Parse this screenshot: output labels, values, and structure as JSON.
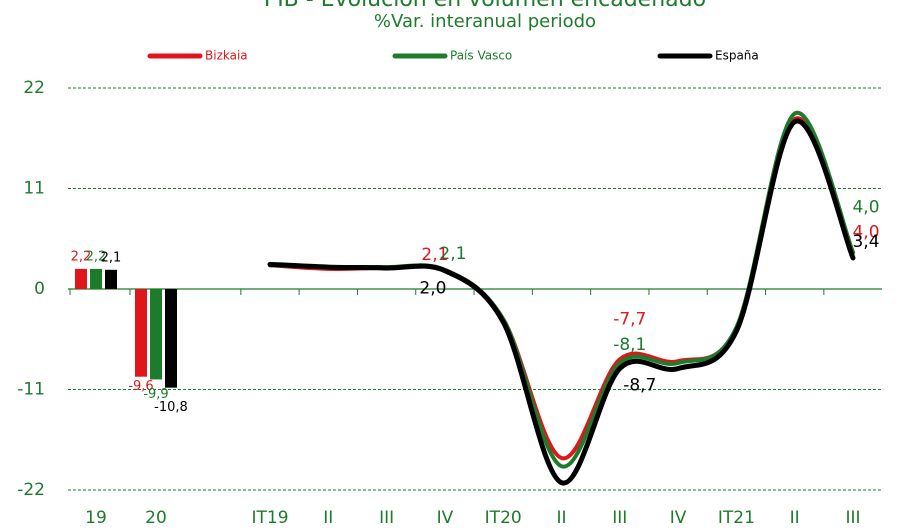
{
  "chart_data": [
    {
      "type": "bar",
      "title": "PIB - Evolución en volumen encadenado",
      "subtitle": "%Var. interanual periodo",
      "categories": [
        "19",
        "20"
      ],
      "series": [
        {
          "name": "Bizkaia",
          "color": "#e0161b",
          "values": [
            2.2,
            -9.6
          ],
          "value_labels": [
            "2,2",
            "-9,6"
          ]
        },
        {
          "name": "País Vasco",
          "color": "#1e7b2c",
          "values": [
            2.2,
            -9.9
          ],
          "value_labels": [
            "2,2",
            "-9,9"
          ]
        },
        {
          "name": "España",
          "color": "#000000",
          "values": [
            2.1,
            -10.8
          ],
          "value_labels": [
            "2,1",
            "-10,8"
          ]
        }
      ],
      "ylim": [
        -22,
        22
      ],
      "yticks": [
        -22,
        -11,
        0,
        11,
        22
      ],
      "grid": true
    },
    {
      "type": "line",
      "categories": [
        "IT19",
        "II",
        "III",
        "IV",
        "IT20",
        "II",
        "III",
        "IV",
        "IT21",
        "II",
        "III"
      ],
      "series": [
        {
          "name": "Bizkaia",
          "color": "#e0161b",
          "values": [
            2.6,
            2.2,
            2.3,
            2.1,
            -3.3,
            -18.5,
            -7.7,
            -7.9,
            -4.3,
            18.6,
            4.0
          ],
          "value_labels": [
            null,
            null,
            null,
            "2,1",
            null,
            null,
            "-7,7",
            null,
            null,
            null,
            "4,0"
          ]
        },
        {
          "name": "País Vasco",
          "color": "#1e7b2c",
          "values": [
            2.6,
            2.4,
            2.4,
            2.1,
            -3.3,
            -19.4,
            -8.1,
            -8.1,
            -4.2,
            19.2,
            4.0
          ],
          "value_labels": [
            null,
            null,
            null,
            "2,1",
            null,
            null,
            "-8,1",
            null,
            null,
            null,
            "4,0"
          ]
        },
        {
          "name": "España",
          "color": "#000000",
          "values": [
            2.7,
            2.4,
            2.3,
            2.0,
            -3.6,
            -21.2,
            -8.7,
            -8.7,
            -4.6,
            18.3,
            3.4
          ],
          "value_labels": [
            null,
            null,
            null,
            "2,0",
            null,
            null,
            "-8,7",
            null,
            null,
            null,
            "3,4"
          ]
        }
      ],
      "ylim": [
        -22,
        22
      ]
    }
  ]
}
